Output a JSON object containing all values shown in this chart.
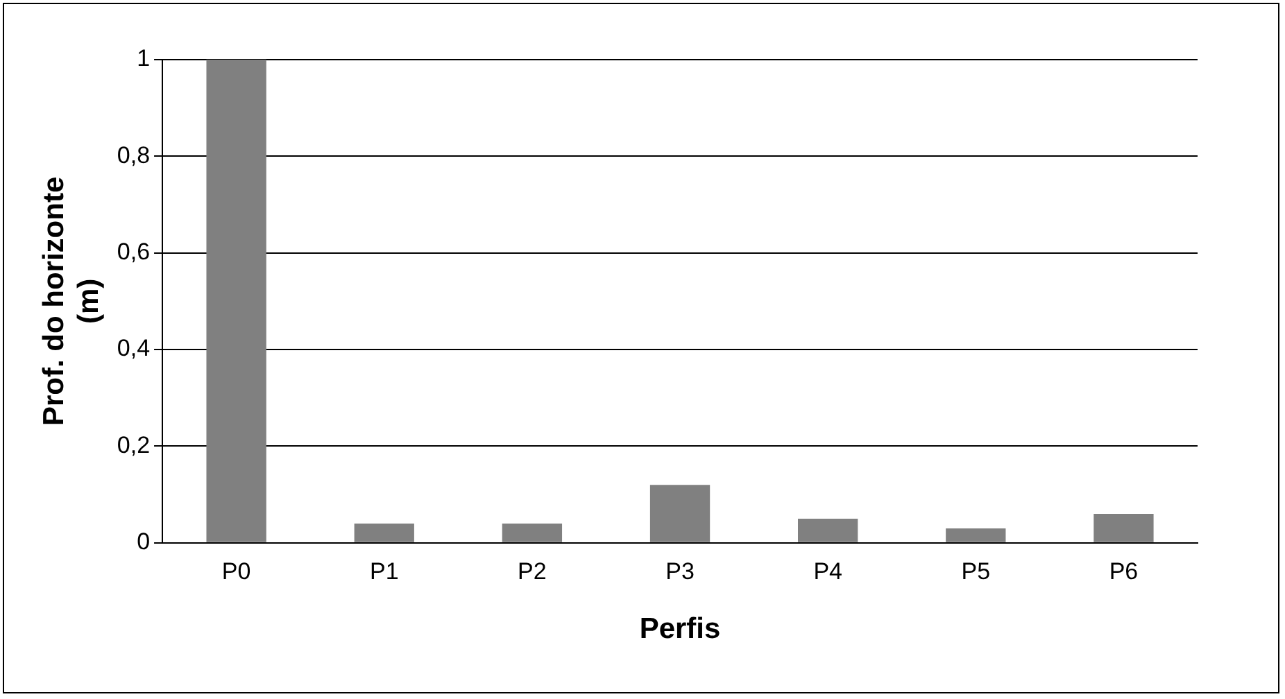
{
  "chart_data": {
    "type": "bar",
    "xlabel": "Perfis",
    "ylabel": "Prof. do horizonte (m)",
    "categories": [
      "P0",
      "P1",
      "P2",
      "P3",
      "P4",
      "P5",
      "P6"
    ],
    "values": [
      1,
      0.04,
      0.04,
      0.12,
      0.05,
      0.03,
      0.06
    ],
    "color": "#808080",
    "ylim": [
      0,
      1
    ],
    "yticks": [
      0,
      {
        "value": 0.2,
        "label": "0,2"
      },
      {
        "value": 0.4,
        "label": "0,4"
      },
      {
        "value": 0.6,
        "label": "0,6"
      },
      {
        "value": 0.8,
        "label": "0,8"
      },
      1
    ],
    "grid": "y",
    "legend": false
  }
}
